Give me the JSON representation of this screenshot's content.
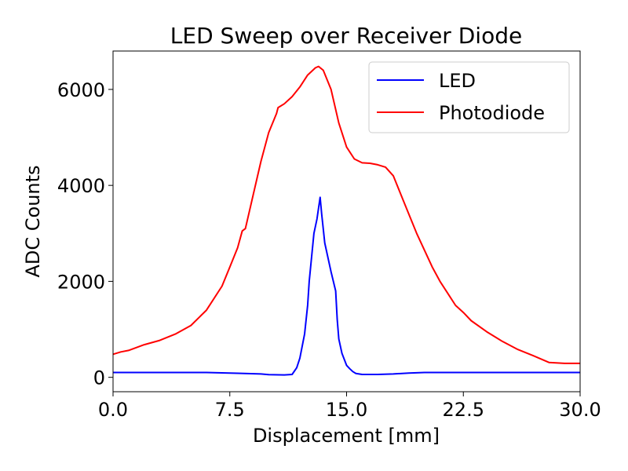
{
  "chart_data": {
    "type": "line",
    "title": "LED Sweep over Receiver Diode",
    "xlabel": "Displacement [mm]",
    "ylabel": "ADC Counts",
    "xlim": [
      0,
      30
    ],
    "ylim": [
      -300,
      6800
    ],
    "xticks": [
      0,
      7.5,
      15,
      22.5,
      30
    ],
    "xtick_labels": [
      "0.0",
      "7.5",
      "15.0",
      "22.5",
      "30.0"
    ],
    "yticks": [
      0,
      2000,
      4000,
      6000
    ],
    "ytick_labels": [
      "0",
      "2000",
      "4000",
      "6000"
    ],
    "legend_position": "top-right",
    "series": [
      {
        "name": "LED",
        "color": "#0000ff",
        "x": [
          0,
          2,
          4,
          6,
          8,
          9.5,
          10,
          11,
          11.5,
          11.8,
          12,
          12.3,
          12.5,
          12.6,
          12.9,
          13.1,
          13.3,
          13.4,
          13.6,
          14,
          14.3,
          14.4,
          14.5,
          14.7,
          15,
          15.2,
          15.4,
          15.6,
          16,
          17,
          18,
          19,
          20,
          25,
          30
        ],
        "values": [
          100,
          100,
          100,
          100,
          85,
          70,
          55,
          50,
          60,
          200,
          400,
          900,
          1500,
          2000,
          3000,
          3300,
          3750,
          3400,
          2800,
          2200,
          1800,
          1200,
          800,
          500,
          250,
          180,
          120,
          80,
          60,
          60,
          70,
          90,
          100,
          100,
          100
        ]
      },
      {
        "name": "Photodiode",
        "color": "#ff0000",
        "x": [
          0,
          0.5,
          1,
          2,
          3,
          4,
          5,
          6,
          7,
          7.5,
          8,
          8.3,
          8.5,
          9,
          9.5,
          10,
          10.5,
          10.6,
          11,
          11.5,
          12,
          12.5,
          13,
          13.2,
          13.5,
          14,
          14.5,
          15,
          15.5,
          16,
          16.5,
          17,
          17.5,
          18,
          18.5,
          19,
          19.5,
          20,
          20.5,
          21,
          21.5,
          22,
          22.5,
          23,
          24,
          25,
          26,
          27,
          27.5,
          28,
          29,
          30
        ],
        "values": [
          480,
          530,
          560,
          680,
          770,
          900,
          1080,
          1400,
          1900,
          2300,
          2700,
          3050,
          3100,
          3800,
          4500,
          5100,
          5500,
          5620,
          5700,
          5850,
          6050,
          6300,
          6450,
          6480,
          6400,
          6000,
          5300,
          4800,
          4550,
          4470,
          4460,
          4430,
          4380,
          4200,
          3800,
          3400,
          3000,
          2650,
          2300,
          2000,
          1750,
          1500,
          1350,
          1180,
          950,
          750,
          580,
          450,
          380,
          310,
          290,
          290
        ]
      }
    ]
  }
}
